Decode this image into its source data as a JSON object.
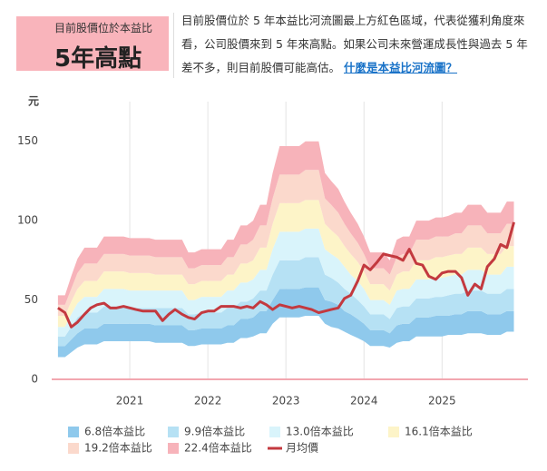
{
  "header": {
    "badge_title": "目前股價位於本益比",
    "badge_value": "5年高點",
    "description": "目前股價位於 5 年本益比河流圖最上方紅色區域，代表從獲利角度來看，公司股價來到 5 年來高點。如果公司未來營運成長性與過去 5 年差不多，則目前股價可能高估。",
    "link": "什麼是本益比河流圖？"
  },
  "chart_data": {
    "type": "area",
    "y_unit": "元",
    "x": [
      2020.08,
      2020.17,
      2020.25,
      2020.33,
      2020.42,
      2020.5,
      2020.58,
      2020.67,
      2020.75,
      2020.83,
      2020.92,
      2021,
      2021.08,
      2021.17,
      2021.25,
      2021.33,
      2021.42,
      2021.5,
      2021.58,
      2021.67,
      2021.75,
      2021.83,
      2021.92,
      2022,
      2022.08,
      2022.17,
      2022.25,
      2022.33,
      2022.42,
      2022.5,
      2022.58,
      2022.67,
      2022.75,
      2022.83,
      2022.92,
      2023,
      2023.08,
      2023.17,
      2023.25,
      2023.33,
      2023.42,
      2023.5,
      2023.58,
      2023.67,
      2023.75,
      2023.83,
      2023.92,
      2024,
      2024.08,
      2024.17,
      2024.25,
      2024.33,
      2024.42,
      2024.5,
      2024.58,
      2024.67,
      2024.75,
      2024.83,
      2024.92,
      2025,
      2025.08,
      2025.17,
      2025.25,
      2025.33,
      2025.42,
      2025.5,
      2025.58,
      2025.67,
      2025.75,
      2025.83,
      2025.92
    ],
    "xlim": [
      2020,
      2026.1
    ],
    "xticks": [
      2021,
      2022,
      2023,
      2024,
      2025
    ],
    "ylim": [
      0,
      175
    ],
    "yticks": [
      0,
      50,
      100,
      150
    ],
    "grid": "x",
    "series": [
      {
        "name": "6.8倍本益比",
        "color": "#8fc9ec",
        "values": [
          14,
          14,
          17,
          20,
          22,
          22,
          22,
          24,
          24,
          24,
          24,
          24,
          24,
          24,
          24,
          23,
          23,
          23,
          23,
          23,
          21,
          21,
          22,
          22,
          22,
          22,
          23,
          23,
          26,
          26,
          27,
          29,
          29,
          35,
          39,
          39,
          39,
          39,
          40,
          40,
          40,
          35,
          33,
          32,
          30,
          28,
          26,
          24,
          21,
          21,
          21,
          20,
          23,
          24,
          24,
          27,
          27,
          27,
          27,
          27,
          28,
          28,
          28,
          29,
          29,
          29,
          28,
          28,
          28,
          30,
          30
        ]
      },
      {
        "name": "9.9倍本益比",
        "color": "#b6e1f4",
        "values": [
          21,
          21,
          25,
          29,
          32,
          32,
          32,
          35,
          35,
          35,
          35,
          35,
          35,
          35,
          35,
          34,
          34,
          34,
          34,
          34,
          31,
          31,
          32,
          32,
          32,
          32,
          34,
          34,
          38,
          38,
          39,
          43,
          43,
          50,
          57,
          57,
          57,
          57,
          58,
          58,
          58,
          50,
          49,
          47,
          43,
          41,
          38,
          35,
          31,
          31,
          31,
          29,
          34,
          35,
          35,
          39,
          39,
          39,
          40,
          40,
          40,
          41,
          41,
          43,
          43,
          43,
          41,
          41,
          41,
          43,
          43
        ]
      },
      {
        "name": "13.0倍本益比",
        "color": "#d9f4fb",
        "values": [
          27,
          27,
          33,
          39,
          42,
          42,
          42,
          46,
          46,
          46,
          46,
          45,
          45,
          45,
          45,
          45,
          45,
          45,
          45,
          45,
          41,
          41,
          42,
          42,
          42,
          42,
          45,
          45,
          49,
          49,
          51,
          56,
          56,
          66,
          75,
          75,
          75,
          75,
          77,
          77,
          77,
          66,
          64,
          61,
          57,
          54,
          50,
          46,
          41,
          41,
          41,
          38,
          45,
          46,
          46,
          51,
          51,
          51,
          52,
          52,
          53,
          54,
          54,
          56,
          56,
          56,
          54,
          54,
          54,
          57,
          57
        ]
      },
      {
        "name": "16.1倍本益比",
        "color": "#fdf4c8",
        "values": [
          33,
          33,
          41,
          48,
          52,
          52,
          52,
          57,
          57,
          57,
          57,
          56,
          56,
          56,
          56,
          56,
          56,
          56,
          56,
          56,
          50,
          50,
          52,
          52,
          52,
          52,
          56,
          56,
          61,
          61,
          63,
          69,
          69,
          82,
          93,
          93,
          93,
          93,
          95,
          95,
          95,
          82,
          79,
          76,
          71,
          66,
          62,
          57,
          50,
          50,
          50,
          47,
          56,
          57,
          57,
          63,
          63,
          63,
          64,
          64,
          65,
          66,
          66,
          69,
          69,
          69,
          66,
          66,
          66,
          71,
          71
        ]
      },
      {
        "name": "19.2倍本益比",
        "color": "#fbd9cc",
        "values": [
          40,
          40,
          49,
          57,
          62,
          62,
          62,
          68,
          68,
          68,
          68,
          67,
          67,
          67,
          67,
          66,
          66,
          66,
          66,
          66,
          60,
          60,
          62,
          62,
          62,
          62,
          66,
          66,
          73,
          73,
          75,
          83,
          83,
          98,
          111,
          111,
          111,
          111,
          113,
          113,
          113,
          98,
          94,
          90,
          84,
          79,
          74,
          68,
          60,
          60,
          60,
          56,
          66,
          68,
          68,
          75,
          75,
          75,
          77,
          77,
          78,
          79,
          79,
          83,
          83,
          83,
          79,
          79,
          79,
          84,
          84
        ]
      },
      {
        "name": "22.4倍本益比",
        "color": "#f7b3ba",
        "values": [
          47,
          47,
          57,
          67,
          73,
          73,
          73,
          79,
          79,
          79,
          79,
          78,
          78,
          78,
          78,
          77,
          77,
          77,
          77,
          77,
          70,
          70,
          72,
          72,
          72,
          72,
          77,
          77,
          85,
          85,
          88,
          97,
          97,
          114,
          129,
          129,
          129,
          129,
          132,
          132,
          132,
          114,
          110,
          105,
          98,
          92,
          86,
          79,
          70,
          70,
          70,
          66,
          77,
          79,
          79,
          88,
          88,
          88,
          90,
          90,
          90,
          92,
          92,
          97,
          97,
          97,
          92,
          92,
          92,
          98,
          98
        ],
        "upper": [
          53,
          53,
          65,
          76,
          83,
          83,
          83,
          90,
          90,
          90,
          90,
          89,
          89,
          89,
          89,
          88,
          88,
          88,
          88,
          88,
          80,
          80,
          82,
          82,
          82,
          82,
          88,
          88,
          97,
          97,
          100,
          110,
          110,
          130,
          147,
          147,
          147,
          147,
          150,
          150,
          150,
          130,
          125,
          120,
          112,
          105,
          98,
          90,
          80,
          80,
          80,
          75,
          88,
          90,
          90,
          100,
          100,
          100,
          102,
          102,
          103,
          105,
          105,
          110,
          110,
          110,
          105,
          105,
          105,
          112,
          112
        ]
      },
      {
        "name": "月均價",
        "color": "#c3393f",
        "mark": "line",
        "values": [
          45,
          42,
          33,
          36,
          41,
          45,
          47,
          48,
          45,
          45,
          46,
          45,
          44,
          43,
          43,
          43,
          37,
          41,
          44,
          41,
          39,
          38,
          42,
          43,
          43,
          46,
          46,
          46,
          45,
          46,
          45,
          49,
          47,
          44,
          47,
          46,
          45,
          46,
          45,
          44,
          42,
          43,
          44,
          45,
          51,
          53,
          62,
          72,
          69,
          74,
          79,
          78,
          77,
          75,
          82,
          73,
          72,
          65,
          63,
          67,
          68,
          68,
          64,
          53,
          60,
          57,
          71,
          76,
          85,
          83,
          99
        ]
      }
    ]
  }
}
